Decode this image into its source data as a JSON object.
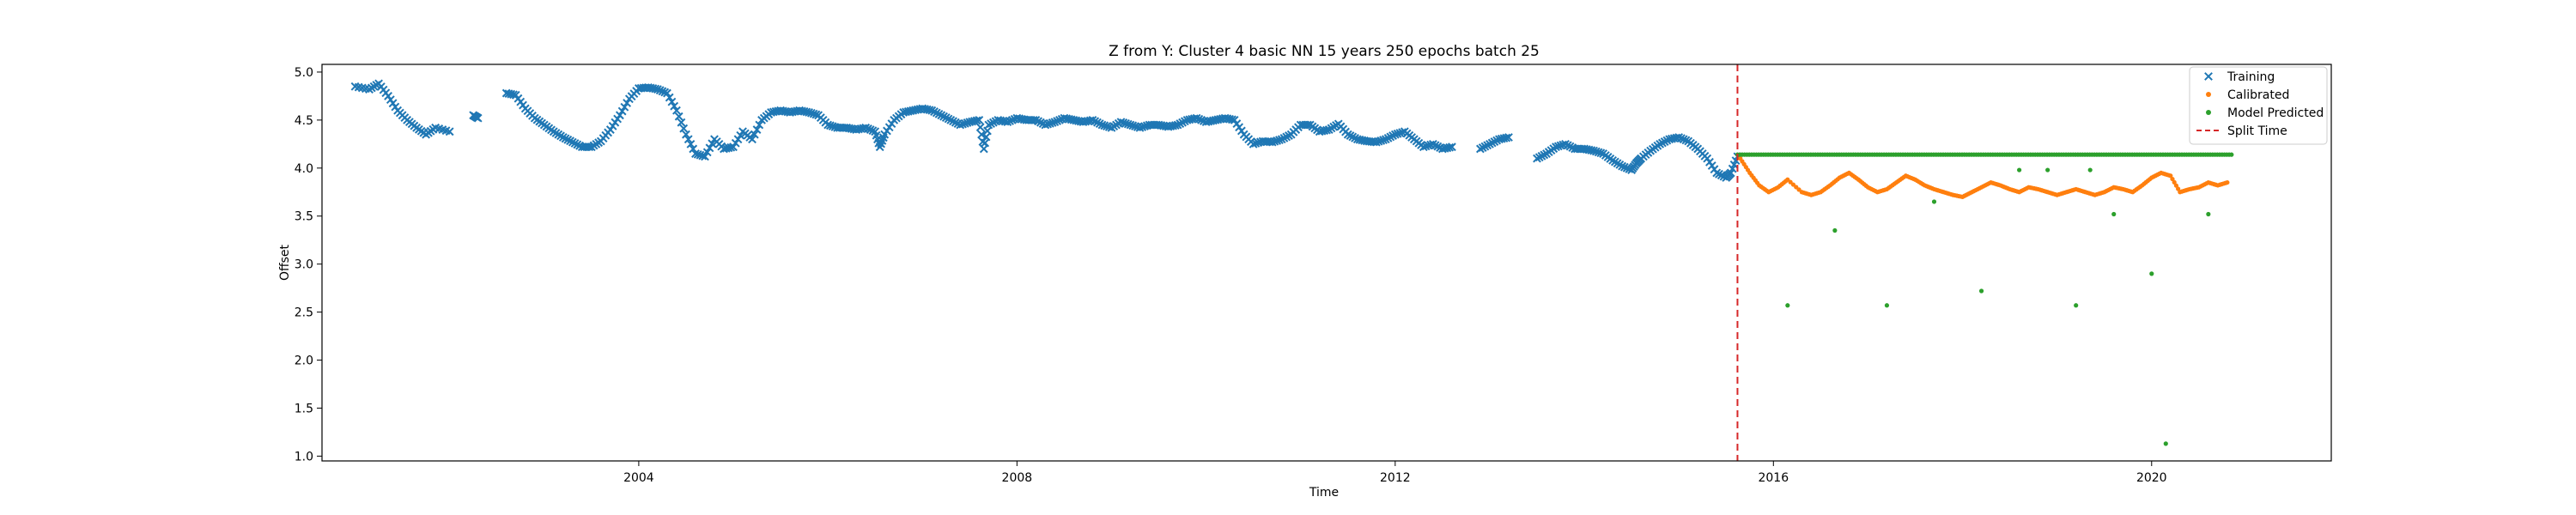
{
  "chart_data": {
    "type": "scatter",
    "title": "Z from Y: Cluster 4 basic NN 15 years 250 epochs batch 25",
    "xlabel": "Time",
    "ylabel": "Offset",
    "xlim": [
      2000.65,
      2021.9
    ],
    "ylim": [
      0.95,
      5.08
    ],
    "x_ticks": [
      2004,
      2008,
      2012,
      2016,
      2020
    ],
    "x_tick_labels": [
      "2004",
      "2008",
      "2012",
      "2016",
      "2020"
    ],
    "y_ticks": [
      1.0,
      1.5,
      2.0,
      2.5,
      3.0,
      3.5,
      4.0,
      4.5,
      5.0
    ],
    "y_tick_labels": [
      "1.0",
      "1.5",
      "2.0",
      "2.5",
      "3.0",
      "3.5",
      "4.0",
      "4.5",
      "5.0"
    ],
    "grid": false,
    "legend_position": "top-right",
    "split_time": 2015.62,
    "series": [
      {
        "name": "Training",
        "marker": "x",
        "color": "#1f77b4",
        "points": [
          [
            2001.0,
            4.85
          ],
          [
            2001.15,
            4.82
          ],
          [
            2001.25,
            4.88
          ],
          [
            2001.35,
            4.75
          ],
          [
            2001.45,
            4.6
          ],
          [
            2001.55,
            4.5
          ],
          [
            2001.65,
            4.42
          ],
          [
            2001.75,
            4.35
          ],
          [
            2001.85,
            4.42
          ],
          [
            2002.0,
            4.38
          ],
          [
            2002.25,
            4.55
          ],
          [
            2002.3,
            4.52
          ],
          [
            2002.6,
            4.78
          ],
          [
            2002.7,
            4.76
          ],
          [
            2002.8,
            4.62
          ],
          [
            2002.9,
            4.52
          ],
          [
            2003.0,
            4.45
          ],
          [
            2003.1,
            4.38
          ],
          [
            2003.2,
            4.32
          ],
          [
            2003.3,
            4.27
          ],
          [
            2003.4,
            4.22
          ],
          [
            2003.5,
            4.22
          ],
          [
            2003.6,
            4.28
          ],
          [
            2003.7,
            4.4
          ],
          [
            2003.8,
            4.55
          ],
          [
            2003.9,
            4.72
          ],
          [
            2004.0,
            4.83
          ],
          [
            2004.1,
            4.84
          ],
          [
            2004.2,
            4.82
          ],
          [
            2004.3,
            4.78
          ],
          [
            2004.4,
            4.6
          ],
          [
            2004.5,
            4.35
          ],
          [
            2004.6,
            4.15
          ],
          [
            2004.7,
            4.12
          ],
          [
            2004.8,
            4.3
          ],
          [
            2004.9,
            4.2
          ],
          [
            2005.0,
            4.22
          ],
          [
            2005.1,
            4.38
          ],
          [
            2005.2,
            4.3
          ],
          [
            2005.3,
            4.5
          ],
          [
            2005.4,
            4.58
          ],
          [
            2005.5,
            4.6
          ],
          [
            2005.6,
            4.58
          ],
          [
            2005.7,
            4.6
          ],
          [
            2005.8,
            4.58
          ],
          [
            2005.9,
            4.55
          ],
          [
            2006.0,
            4.45
          ],
          [
            2006.1,
            4.42
          ],
          [
            2006.2,
            4.42
          ],
          [
            2006.3,
            4.4
          ],
          [
            2006.4,
            4.42
          ],
          [
            2006.5,
            4.38
          ],
          [
            2006.55,
            4.22
          ],
          [
            2006.6,
            4.35
          ],
          [
            2006.7,
            4.5
          ],
          [
            2006.8,
            4.58
          ],
          [
            2006.9,
            4.6
          ],
          [
            2007.0,
            4.62
          ],
          [
            2007.1,
            4.6
          ],
          [
            2007.2,
            4.55
          ],
          [
            2007.3,
            4.5
          ],
          [
            2007.4,
            4.45
          ],
          [
            2007.5,
            4.48
          ],
          [
            2007.6,
            4.5
          ],
          [
            2007.65,
            4.2
          ],
          [
            2007.7,
            4.45
          ],
          [
            2007.8,
            4.5
          ],
          [
            2007.9,
            4.48
          ],
          [
            2008.0,
            4.52
          ],
          [
            2008.1,
            4.5
          ],
          [
            2008.2,
            4.5
          ],
          [
            2008.3,
            4.45
          ],
          [
            2008.4,
            4.48
          ],
          [
            2008.5,
            4.52
          ],
          [
            2008.6,
            4.5
          ],
          [
            2008.7,
            4.48
          ],
          [
            2008.8,
            4.5
          ],
          [
            2008.9,
            4.45
          ],
          [
            2009.0,
            4.42
          ],
          [
            2009.1,
            4.48
          ],
          [
            2009.2,
            4.45
          ],
          [
            2009.3,
            4.42
          ],
          [
            2009.4,
            4.45
          ],
          [
            2009.5,
            4.45
          ],
          [
            2009.6,
            4.43
          ],
          [
            2009.7,
            4.45
          ],
          [
            2009.8,
            4.5
          ],
          [
            2009.9,
            4.52
          ],
          [
            2010.0,
            4.48
          ],
          [
            2010.1,
            4.5
          ],
          [
            2010.2,
            4.52
          ],
          [
            2010.3,
            4.5
          ],
          [
            2010.4,
            4.35
          ],
          [
            2010.5,
            4.25
          ],
          [
            2010.6,
            4.28
          ],
          [
            2010.7,
            4.27
          ],
          [
            2010.8,
            4.3
          ],
          [
            2010.9,
            4.35
          ],
          [
            2011.0,
            4.45
          ],
          [
            2011.1,
            4.45
          ],
          [
            2011.2,
            4.38
          ],
          [
            2011.3,
            4.4
          ],
          [
            2011.4,
            4.46
          ],
          [
            2011.5,
            4.35
          ],
          [
            2011.6,
            4.3
          ],
          [
            2011.7,
            4.28
          ],
          [
            2011.8,
            4.27
          ],
          [
            2011.9,
            4.3
          ],
          [
            2012.0,
            4.35
          ],
          [
            2012.1,
            4.38
          ],
          [
            2012.2,
            4.3
          ],
          [
            2012.3,
            4.22
          ],
          [
            2012.4,
            4.25
          ],
          [
            2012.5,
            4.2
          ],
          [
            2012.6,
            4.22
          ],
          [
            2012.9,
            4.2
          ],
          [
            2013.0,
            4.25
          ],
          [
            2013.1,
            4.3
          ],
          [
            2013.2,
            4.32
          ],
          [
            2013.5,
            4.1
          ],
          [
            2013.6,
            4.15
          ],
          [
            2013.7,
            4.22
          ],
          [
            2013.8,
            4.25
          ],
          [
            2013.9,
            4.2
          ],
          [
            2014.0,
            4.2
          ],
          [
            2014.1,
            4.18
          ],
          [
            2014.2,
            4.15
          ],
          [
            2014.3,
            4.08
          ],
          [
            2014.4,
            4.02
          ],
          [
            2014.5,
            3.98
          ],
          [
            2014.55,
            4.05
          ],
          [
            2014.6,
            4.1
          ],
          [
            2014.7,
            4.18
          ],
          [
            2014.8,
            4.25
          ],
          [
            2014.9,
            4.3
          ],
          [
            2015.0,
            4.32
          ],
          [
            2015.1,
            4.28
          ],
          [
            2015.2,
            4.2
          ],
          [
            2015.3,
            4.1
          ],
          [
            2015.4,
            3.95
          ],
          [
            2015.5,
            3.9
          ],
          [
            2015.55,
            3.95
          ],
          [
            2015.62,
            4.12
          ]
        ]
      },
      {
        "name": "Calibrated",
        "marker": "dot",
        "color": "#ff7f0e",
        "points": [
          [
            2015.65,
            4.1
          ],
          [
            2015.75,
            3.95
          ],
          [
            2015.85,
            3.82
          ],
          [
            2015.95,
            3.75
          ],
          [
            2016.05,
            3.8
          ],
          [
            2016.15,
            3.88
          ],
          [
            2016.3,
            3.75
          ],
          [
            2016.4,
            3.72
          ],
          [
            2016.5,
            3.75
          ],
          [
            2016.6,
            3.82
          ],
          [
            2016.7,
            3.9
          ],
          [
            2016.8,
            3.95
          ],
          [
            2016.9,
            3.88
          ],
          [
            2017.0,
            3.8
          ],
          [
            2017.1,
            3.75
          ],
          [
            2017.2,
            3.78
          ],
          [
            2017.3,
            3.85
          ],
          [
            2017.4,
            3.92
          ],
          [
            2017.5,
            3.88
          ],
          [
            2017.6,
            3.82
          ],
          [
            2017.7,
            3.78
          ],
          [
            2017.8,
            3.75
          ],
          [
            2017.9,
            3.72
          ],
          [
            2018.0,
            3.7
          ],
          [
            2018.1,
            3.75
          ],
          [
            2018.2,
            3.8
          ],
          [
            2018.3,
            3.85
          ],
          [
            2018.4,
            3.82
          ],
          [
            2018.5,
            3.78
          ],
          [
            2018.6,
            3.75
          ],
          [
            2018.7,
            3.8
          ],
          [
            2018.8,
            3.78
          ],
          [
            2018.9,
            3.75
          ],
          [
            2019.0,
            3.72
          ],
          [
            2019.1,
            3.75
          ],
          [
            2019.2,
            3.78
          ],
          [
            2019.3,
            3.75
          ],
          [
            2019.4,
            3.72
          ],
          [
            2019.5,
            3.75
          ],
          [
            2019.6,
            3.8
          ],
          [
            2019.7,
            3.78
          ],
          [
            2019.8,
            3.75
          ],
          [
            2019.9,
            3.82
          ],
          [
            2020.0,
            3.9
          ],
          [
            2020.1,
            3.95
          ],
          [
            2020.2,
            3.92
          ],
          [
            2020.3,
            3.75
          ],
          [
            2020.4,
            3.78
          ],
          [
            2020.5,
            3.8
          ],
          [
            2020.6,
            3.85
          ],
          [
            2020.7,
            3.82
          ],
          [
            2020.8,
            3.85
          ]
        ]
      },
      {
        "name": "Model Predicted",
        "marker": "dot",
        "color": "#2ca02c",
        "baseline": 4.14,
        "baseline_range": [
          2015.62,
          2020.85
        ],
        "outliers": [
          [
            2016.15,
            2.57
          ],
          [
            2016.65,
            3.35
          ],
          [
            2017.2,
            2.57
          ],
          [
            2017.7,
            3.65
          ],
          [
            2018.2,
            2.72
          ],
          [
            2018.6,
            3.98
          ],
          [
            2018.9,
            3.98
          ],
          [
            2019.2,
            2.57
          ],
          [
            2019.35,
            3.98
          ],
          [
            2019.6,
            3.52
          ],
          [
            2020.0,
            2.9
          ],
          [
            2020.15,
            1.13
          ],
          [
            2020.6,
            3.52
          ]
        ]
      },
      {
        "name": "Split Time",
        "marker": "dashed-line",
        "color": "#d62728"
      }
    ]
  }
}
